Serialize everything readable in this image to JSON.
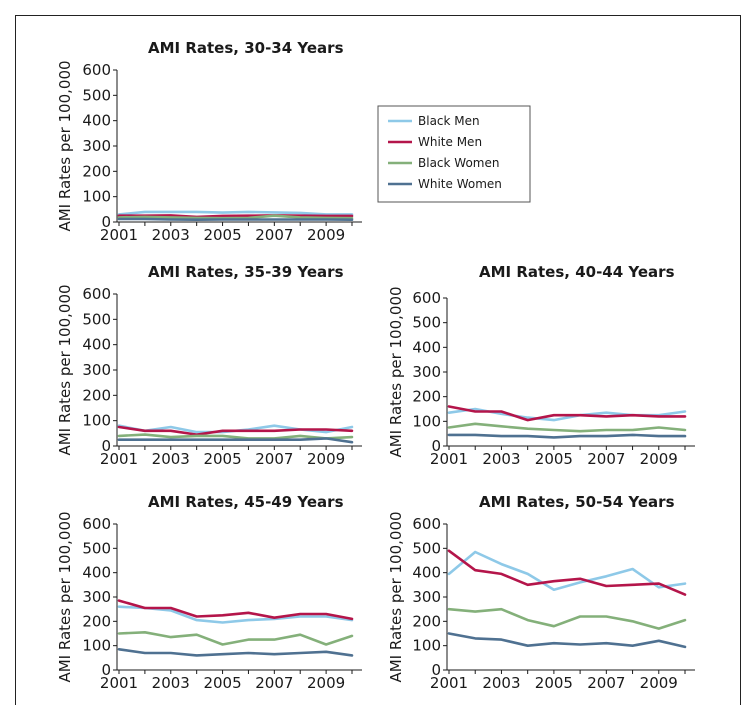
{
  "colors": {
    "black_men": "#8ec9e8",
    "white_men": "#b4154a",
    "black_women": "#84b07a",
    "white_women": "#4f7191"
  },
  "legend": {
    "items": [
      {
        "label": "Black Men",
        "color": "#8ec9e8"
      },
      {
        "label": "White Men",
        "color": "#b4154a"
      },
      {
        "label": "Black Women",
        "color": "#84b07a"
      },
      {
        "label": "White Women",
        "color": "#4f7191"
      }
    ]
  },
  "chart_data": [
    {
      "type": "line",
      "title": "AMI Rates, 30-34 Years",
      "ylabel": "AMI Rates per 100,000",
      "xlabel": "",
      "x": [
        2001,
        2002,
        2003,
        2004,
        2005,
        2006,
        2007,
        2008,
        2009,
        2010
      ],
      "xticks": [
        "2001",
        "2003",
        "2005",
        "2007",
        "2009"
      ],
      "yticks": [
        "0",
        "100",
        "200",
        "300",
        "400",
        "500",
        "600"
      ],
      "ylim": [
        0,
        600
      ],
      "series": [
        {
          "name": "Black Men",
          "values": [
            30,
            40,
            40,
            40,
            37,
            40,
            38,
            36,
            30,
            30
          ]
        },
        {
          "name": "White Men",
          "values": [
            25,
            25,
            26,
            20,
            24,
            25,
            26,
            25,
            24,
            24
          ]
        },
        {
          "name": "Black Women",
          "values": [
            18,
            20,
            18,
            16,
            15,
            16,
            25,
            18,
            16,
            15
          ]
        },
        {
          "name": "White Women",
          "values": [
            12,
            12,
            10,
            9,
            10,
            10,
            10,
            10,
            10,
            9
          ]
        }
      ]
    },
    {
      "type": "line",
      "title": "AMI Rates, 35-39 Years",
      "ylabel": "AMI Rates per 100,000",
      "xlabel": "",
      "x": [
        2001,
        2002,
        2003,
        2004,
        2005,
        2006,
        2007,
        2008,
        2009,
        2010
      ],
      "xticks": [
        "2001",
        "2003",
        "2005",
        "2007",
        "2009"
      ],
      "yticks": [
        "0",
        "100",
        "200",
        "300",
        "400",
        "500",
        "600"
      ],
      "ylim": [
        0,
        600
      ],
      "series": [
        {
          "name": "Black Men",
          "values": [
            80,
            60,
            75,
            55,
            55,
            65,
            80,
            65,
            55,
            75
          ]
        },
        {
          "name": "White Men",
          "values": [
            75,
            60,
            60,
            45,
            60,
            60,
            60,
            65,
            65,
            60
          ]
        },
        {
          "name": "Black Women",
          "values": [
            40,
            45,
            35,
            40,
            40,
            30,
            30,
            40,
            30,
            35
          ]
        },
        {
          "name": "White Women",
          "values": [
            25,
            25,
            25,
            25,
            25,
            25,
            25,
            25,
            30,
            15
          ]
        }
      ]
    },
    {
      "type": "line",
      "title": "AMI Rates, 40-44 Years",
      "ylabel": "AMI Rates per 100,000",
      "xlabel": "",
      "x": [
        2001,
        2002,
        2003,
        2004,
        2005,
        2006,
        2007,
        2008,
        2009,
        2010
      ],
      "xticks": [
        "2001",
        "2003",
        "2005",
        "2007",
        "2009"
      ],
      "yticks": [
        "0",
        "100",
        "200",
        "300",
        "400",
        "500",
        "600"
      ],
      "ylim": [
        0,
        600
      ],
      "series": [
        {
          "name": "Black Men",
          "values": [
            135,
            150,
            130,
            115,
            105,
            125,
            135,
            125,
            125,
            140
          ]
        },
        {
          "name": "White Men",
          "values": [
            160,
            140,
            140,
            105,
            125,
            125,
            120,
            125,
            120,
            120
          ]
        },
        {
          "name": "Black Women",
          "values": [
            75,
            90,
            80,
            70,
            65,
            60,
            65,
            65,
            75,
            65
          ]
        },
        {
          "name": "White Women",
          "values": [
            45,
            45,
            40,
            40,
            35,
            40,
            40,
            45,
            40,
            40
          ]
        }
      ]
    },
    {
      "type": "line",
      "title": "AMI Rates, 45-49 Years",
      "ylabel": "AMI Rates per 100,000",
      "xlabel": "",
      "x": [
        2001,
        2002,
        2003,
        2004,
        2005,
        2006,
        2007,
        2008,
        2009,
        2010
      ],
      "xticks": [
        "2001",
        "2003",
        "2005",
        "2007",
        "2009"
      ],
      "yticks": [
        "0",
        "100",
        "200",
        "300",
        "400",
        "500",
        "600"
      ],
      "ylim": [
        0,
        600
      ],
      "series": [
        {
          "name": "Black Men",
          "values": [
            260,
            255,
            245,
            205,
            195,
            205,
            210,
            220,
            220,
            205
          ]
        },
        {
          "name": "White Men",
          "values": [
            285,
            255,
            255,
            220,
            225,
            235,
            215,
            230,
            230,
            210
          ]
        },
        {
          "name": "Black Women",
          "values": [
            150,
            155,
            135,
            145,
            105,
            125,
            125,
            145,
            105,
            140
          ]
        },
        {
          "name": "White Women",
          "values": [
            85,
            70,
            70,
            60,
            65,
            70,
            65,
            70,
            75,
            60
          ]
        }
      ]
    },
    {
      "type": "line",
      "title": "AMI Rates, 50-54 Years",
      "ylabel": "AMI Rates per 100,000",
      "xlabel": "",
      "x": [
        2001,
        2002,
        2003,
        2004,
        2005,
        2006,
        2007,
        2008,
        2009,
        2010
      ],
      "xticks": [
        "2001",
        "2003",
        "2005",
        "2007",
        "2009"
      ],
      "yticks": [
        "0",
        "100",
        "200",
        "300",
        "400",
        "500",
        "600"
      ],
      "ylim": [
        0,
        600
      ],
      "series": [
        {
          "name": "Black Men",
          "values": [
            395,
            485,
            435,
            395,
            330,
            360,
            385,
            415,
            340,
            355
          ]
        },
        {
          "name": "White Men",
          "values": [
            490,
            410,
            395,
            350,
            365,
            375,
            345,
            350,
            355,
            310
          ]
        },
        {
          "name": "Black Women",
          "values": [
            250,
            240,
            250,
            205,
            180,
            220,
            220,
            200,
            170,
            205
          ]
        },
        {
          "name": "White Women",
          "values": [
            150,
            130,
            125,
            100,
            110,
            105,
            110,
            100,
            120,
            95
          ]
        }
      ]
    }
  ]
}
